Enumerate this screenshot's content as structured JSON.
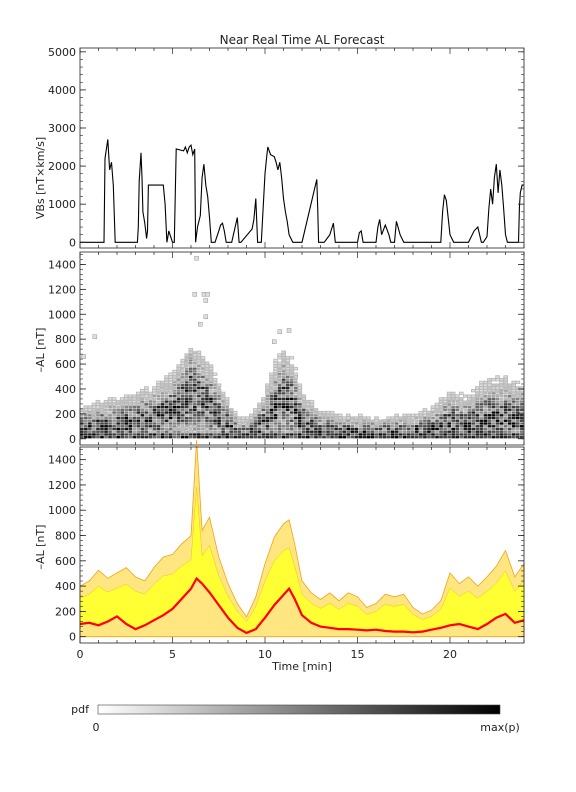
{
  "chart_data": [
    {
      "type": "line",
      "title": "Near Real Time AL Forecast",
      "ylabel": "VBs [nT×km/s]",
      "xlim": [
        0,
        24
      ],
      "ylim": [
        -150,
        5100
      ],
      "yticks": [
        "0",
        "1000",
        "2000",
        "3000",
        "4000",
        "5000"
      ],
      "grid": false,
      "series": [
        {
          "color": "#000000",
          "x": [
            0,
            1.3,
            1.35,
            1.5,
            1.6,
            1.7,
            1.8,
            1.9,
            2.0,
            3.1,
            3.15,
            3.2,
            3.3,
            3.35,
            3.4,
            3.5,
            3.6,
            3.65,
            3.7,
            4.5,
            4.6,
            4.7,
            4.75,
            4.8,
            5.0,
            5.1,
            5.2,
            5.6,
            5.7,
            5.8,
            5.9,
            6.0,
            6.1,
            6.2,
            6.25,
            6.35,
            6.5,
            6.6,
            6.7,
            6.8,
            6.9,
            7.0,
            7.1,
            7.2,
            7.3,
            7.5,
            7.6,
            7.7,
            7.8,
            7.9,
            8.0,
            8.2,
            8.5,
            8.6,
            8.7,
            9.3,
            9.4,
            9.5,
            9.6,
            9.8,
            10.0,
            10.1,
            10.15,
            10.3,
            10.5,
            10.6,
            10.7,
            10.8,
            10.9,
            11.0,
            11.1,
            11.2,
            11.3,
            11.5,
            11.7,
            12.0,
            12.8,
            12.85,
            12.9,
            13.0,
            13.2,
            13.5,
            13.6,
            13.7,
            13.8,
            14.0,
            14.5,
            15.0,
            15.1,
            15.2,
            15.3,
            15.6,
            16.0,
            16.1,
            16.2,
            16.3,
            16.5,
            16.7,
            16.8,
            17.0,
            17.1,
            17.3,
            17.5,
            17.8,
            18.0,
            18.5,
            19.5,
            19.6,
            19.7,
            19.8,
            20.0,
            20.2,
            20.5,
            21.0,
            21.3,
            21.5,
            21.7,
            21.8,
            22.0,
            22.1,
            22.2,
            22.3,
            22.4,
            22.5,
            22.6,
            22.7,
            22.8,
            22.9,
            23.0,
            23.1,
            23.3,
            23.5,
            23.7,
            23.75,
            23.8,
            23.9,
            24.0
          ],
          "y": [
            0,
            0,
            2200,
            2700,
            1900,
            2100,
            1500,
            0,
            0,
            0,
            400,
            1600,
            2350,
            1700,
            800,
            500,
            100,
            300,
            1500,
            1500,
            1000,
            0,
            150,
            300,
            0,
            0,
            2450,
            2400,
            2500,
            2350,
            2500,
            2550,
            2300,
            2450,
            0,
            400,
            700,
            1700,
            2050,
            1500,
            1200,
            650,
            0,
            0,
            0,
            300,
            450,
            500,
            300,
            0,
            0,
            0,
            650,
            0,
            0,
            350,
            600,
            1150,
            0,
            0,
            1800,
            2300,
            2500,
            2300,
            2250,
            2100,
            1900,
            2100,
            1700,
            1150,
            800,
            550,
            200,
            0,
            0,
            0,
            1650,
            900,
            0,
            0,
            0,
            200,
            350,
            500,
            0,
            0,
            0,
            0,
            250,
            300,
            0,
            0,
            0,
            400,
            600,
            200,
            450,
            200,
            0,
            0,
            550,
            200,
            0,
            0,
            0,
            0,
            0,
            800,
            1250,
            1100,
            200,
            0,
            0,
            0,
            300,
            400,
            0,
            0,
            150,
            900,
            1400,
            1000,
            1700,
            2050,
            1300,
            1900,
            1500,
            900,
            200,
            0,
            0,
            0,
            0,
            900,
            1300,
            1500,
            1500
          ]
        }
      ]
    },
    {
      "type": "heatmap",
      "ylabel": "–AL [nT]",
      "xlim": [
        0,
        24
      ],
      "ylim": [
        -50,
        1500
      ],
      "yticks": [
        "0",
        "200",
        "400",
        "600",
        "800",
        "1000",
        "1200",
        "1400"
      ],
      "colorbar": {
        "label": "pdf",
        "min_label": "0",
        "max_label": "max(p)",
        "low_color": "#ffffff",
        "high_color": "#000000"
      },
      "profile": {
        "x": [
          0,
          1,
          2,
          3,
          4,
          5,
          5.5,
          6,
          6.5,
          7,
          7.5,
          8,
          8.5,
          9,
          9.5,
          10,
          10.5,
          11,
          11.5,
          12,
          13,
          14,
          16,
          18,
          19,
          20,
          21,
          22,
          23,
          24
        ],
        "median": [
          60,
          80,
          100,
          120,
          160,
          200,
          260,
          360,
          320,
          260,
          180,
          90,
          40,
          30,
          60,
          120,
          220,
          300,
          260,
          120,
          50,
          40,
          30,
          40,
          60,
          120,
          100,
          150,
          160,
          120
        ],
        "spread": [
          200,
          260,
          280,
          300,
          340,
          420,
          500,
          600,
          560,
          480,
          380,
          260,
          150,
          120,
          200,
          320,
          480,
          580,
          520,
          320,
          200,
          180,
          150,
          180,
          220,
          340,
          300,
          420,
          440,
          380
        ]
      },
      "outliers": [
        {
          "x": 0.8,
          "y": 820
        },
        {
          "x": 0.2,
          "y": 660
        },
        {
          "x": 6.3,
          "y": 1450
        },
        {
          "x": 6.2,
          "y": 1160
        },
        {
          "x": 6.7,
          "y": 1160
        },
        {
          "x": 6.9,
          "y": 1160
        },
        {
          "x": 6.8,
          "y": 1110
        },
        {
          "x": 6.8,
          "y": 980
        },
        {
          "x": 6.5,
          "y": 920
        },
        {
          "x": 10.8,
          "y": 860
        },
        {
          "x": 11.3,
          "y": 870
        },
        {
          "x": 10.5,
          "y": 780
        }
      ]
    },
    {
      "type": "area",
      "ylabel": "–AL [nT]",
      "xlabel": "Time [min]",
      "xlim": [
        0,
        24
      ],
      "ylim": [
        -50,
        1500
      ],
      "xticks": [
        "0",
        "5",
        "10",
        "15",
        "20"
      ],
      "yticks": [
        "0",
        "200",
        "400",
        "600",
        "800",
        "1000",
        "1200",
        "1400"
      ],
      "series": [
        {
          "color": "#ff0000",
          "x": [
            0,
            0.5,
            1,
            1.5,
            2,
            2.5,
            3,
            3.5,
            4,
            4.5,
            5,
            5.5,
            6,
            6.3,
            6.6,
            7,
            7.5,
            8,
            8.5,
            9,
            9.5,
            10,
            10.5,
            11,
            11.3,
            11.6,
            12,
            12.5,
            13,
            13.5,
            14,
            14.5,
            15,
            15.5,
            16,
            16.5,
            17,
            17.5,
            18,
            18.5,
            19,
            19.5,
            20,
            20.5,
            21,
            21.5,
            22,
            22.5,
            23,
            23.5,
            24
          ],
          "y": [
            100,
            110,
            90,
            120,
            160,
            100,
            60,
            90,
            130,
            170,
            220,
            300,
            380,
            460,
            420,
            350,
            250,
            150,
            70,
            30,
            60,
            150,
            250,
            330,
            380,
            300,
            170,
            110,
            80,
            70,
            60,
            60,
            55,
            50,
            55,
            45,
            40,
            40,
            35,
            40,
            55,
            70,
            90,
            100,
            80,
            60,
            100,
            150,
            180,
            110,
            130
          ]
        },
        {
          "color": "#ffff33",
          "x": [
            0,
            0.5,
            1,
            1.5,
            2,
            2.5,
            3,
            3.5,
            4,
            4.5,
            5,
            5.5,
            6,
            6.3,
            6.6,
            7,
            7.5,
            8,
            8.5,
            9,
            9.5,
            10,
            10.5,
            11,
            11.3,
            11.6,
            12,
            12.5,
            13,
            13.5,
            14,
            14.5,
            15,
            15.5,
            16,
            16.5,
            17,
            17.5,
            18,
            18.5,
            19,
            19.5,
            20,
            20.5,
            21,
            21.5,
            22,
            22.5,
            23,
            23.5,
            24
          ],
          "y": [
            380,
            420,
            500,
            440,
            480,
            520,
            450,
            420,
            520,
            600,
            620,
            700,
            760,
            1480,
            800,
            900,
            600,
            400,
            250,
            150,
            300,
            550,
            750,
            850,
            880,
            700,
            420,
            330,
            280,
            330,
            270,
            330,
            300,
            220,
            250,
            320,
            300,
            320,
            220,
            170,
            200,
            270,
            480,
            400,
            450,
            380,
            450,
            530,
            650,
            450,
            550
          ]
        }
      ]
    }
  ]
}
